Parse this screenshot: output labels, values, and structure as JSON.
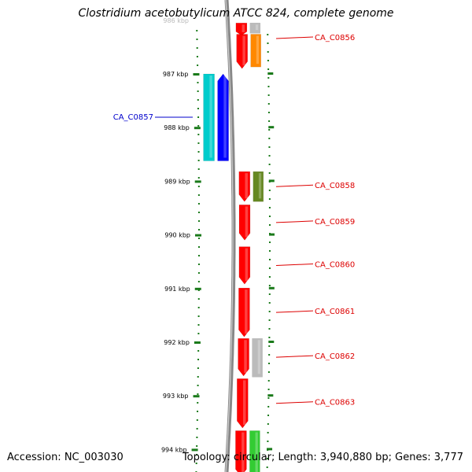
{
  "title": "Clostridium acetobutylicum ATCC 824, complete genome",
  "footer": {
    "accession": "Accession: NC_003030",
    "topology": "Topology: circular; Length: 3,940,880 bp; Genes: 3,777"
  },
  "colors": {
    "tick": "#1a7a1a",
    "backbone": "#888888",
    "forward_label": "#dd0000",
    "reverse_label": "#0000cc"
  },
  "axis": {
    "unit": "kbp",
    "ticks": [
      987,
      988,
      989,
      990,
      991,
      992,
      993,
      994
    ],
    "visible_range_kbp": [
      986.25,
      994.05
    ]
  },
  "genes": [
    {
      "name": "",
      "strand": "+",
      "track": "inner",
      "start_kbp": 986.05,
      "end_kbp": 986.28,
      "color": "#ff0000"
    },
    {
      "name": "",
      "strand": "+",
      "track": "outer",
      "start_kbp": 986.05,
      "end_kbp": 986.24,
      "color": "#bbbbbb"
    },
    {
      "name": "CA_C0856",
      "strand": "+",
      "track": "inner",
      "start_kbp": 986.26,
      "end_kbp": 986.9,
      "color": "#ff0000",
      "show_label": true
    },
    {
      "name": "",
      "strand": "+",
      "track": "outer",
      "start_kbp": 986.26,
      "end_kbp": 986.87,
      "color": "#ff8800"
    },
    {
      "name": "",
      "strand": "-",
      "track": "outer",
      "start_kbp": 987.0,
      "end_kbp": 988.62,
      "color": "#00cccc"
    },
    {
      "name": "CA_C0857",
      "strand": "-",
      "track": "inner",
      "start_kbp": 987.0,
      "end_kbp": 988.62,
      "color": "#0000ff",
      "show_label": true
    },
    {
      "name": "CA_C0858",
      "strand": "+",
      "track": "inner",
      "start_kbp": 988.82,
      "end_kbp": 989.38,
      "color": "#ff0000",
      "show_label": true
    },
    {
      "name": "",
      "strand": "+",
      "track": "outer",
      "start_kbp": 988.82,
      "end_kbp": 989.38,
      "color": "#668822"
    },
    {
      "name": "CA_C0859",
      "strand": "+",
      "track": "inner",
      "start_kbp": 989.44,
      "end_kbp": 990.1,
      "color": "#ff0000",
      "show_label": true
    },
    {
      "name": "CA_C0860",
      "strand": "+",
      "track": "inner",
      "start_kbp": 990.22,
      "end_kbp": 990.92,
      "color": "#ff0000",
      "show_label": true
    },
    {
      "name": "CA_C0861",
      "strand": "+",
      "track": "inner",
      "start_kbp": 990.99,
      "end_kbp": 991.9,
      "color": "#ff0000",
      "show_label": true
    },
    {
      "name": "CA_C0862",
      "strand": "+",
      "track": "inner",
      "start_kbp": 991.93,
      "end_kbp": 992.63,
      "color": "#ff0000",
      "show_label": true
    },
    {
      "name": "",
      "strand": "+",
      "track": "outer",
      "start_kbp": 991.93,
      "end_kbp": 992.65,
      "color": "#bbbbbb"
    },
    {
      "name": "CA_C0863",
      "strand": "+",
      "track": "inner",
      "start_kbp": 992.68,
      "end_kbp": 993.6,
      "color": "#ff0000",
      "show_label": true
    },
    {
      "name": "",
      "strand": "+",
      "track": "inner",
      "start_kbp": 993.65,
      "end_kbp": 994.5,
      "color": "#ff0000"
    },
    {
      "name": "",
      "strand": "+",
      "track": "outer",
      "start_kbp": 993.65,
      "end_kbp": 994.5,
      "color": "#33cc33"
    }
  ]
}
